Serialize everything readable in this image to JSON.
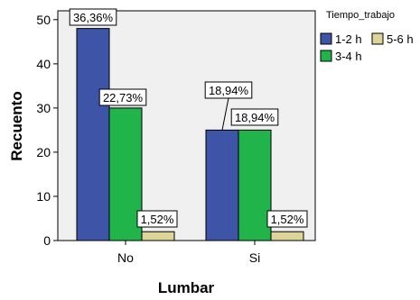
{
  "chart_data": {
    "type": "bar",
    "categories": [
      "No",
      "Si"
    ],
    "series": [
      {
        "name": "1-2 h",
        "color": "#3e54a6",
        "values": [
          48,
          25
        ],
        "labels": [
          "36,36%",
          "18,94%"
        ]
      },
      {
        "name": "3-4 h",
        "color": "#21b44a",
        "values": [
          30,
          25
        ],
        "labels": [
          "22,73%",
          "18,94%"
        ]
      },
      {
        "name": "5-6 h",
        "color": "#ddd49a",
        "values": [
          2,
          2
        ],
        "labels": [
          "1,52%",
          "1,52%"
        ]
      }
    ],
    "xlabel": "Lumbar",
    "ylabel": "Recuento",
    "ylim": [
      0,
      52
    ],
    "yticks": [
      "0",
      "10",
      "20",
      "30",
      "40",
      "50"
    ],
    "legend_title": "Tiempo_trabajo",
    "legend_placement": "top-right",
    "plot_background": "#f0f0f0",
    "grid": false
  }
}
